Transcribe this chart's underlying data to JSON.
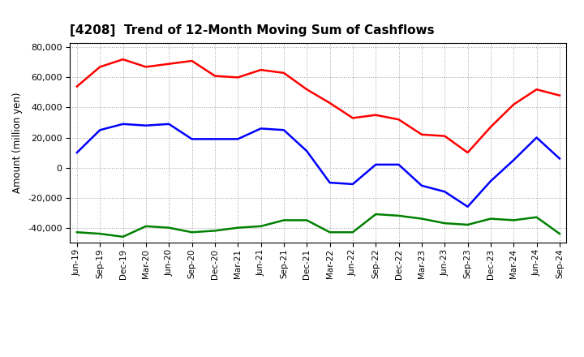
{
  "title": "[4208]  Trend of 12-Month Moving Sum of Cashflows",
  "ylabel": "Amount (million yen)",
  "x_labels": [
    "Jun-19",
    "Sep-19",
    "Dec-19",
    "Mar-20",
    "Jun-20",
    "Sep-20",
    "Dec-20",
    "Mar-21",
    "Jun-21",
    "Sep-21",
    "Dec-21",
    "Mar-22",
    "Jun-22",
    "Sep-22",
    "Dec-22",
    "Mar-23",
    "Jun-23",
    "Sep-23",
    "Dec-23",
    "Mar-24",
    "Jun-24",
    "Sep-24"
  ],
  "operating": [
    54000,
    67000,
    72000,
    67000,
    69000,
    71000,
    61000,
    60000,
    65000,
    63000,
    52000,
    43000,
    33000,
    35000,
    32000,
    22000,
    21000,
    10000,
    27000,
    42000,
    52000,
    48000
  ],
  "investing": [
    -43000,
    -44000,
    -46000,
    -39000,
    -40000,
    -43000,
    -42000,
    -40000,
    -39000,
    -35000,
    -35000,
    -43000,
    -43000,
    -31000,
    -32000,
    -34000,
    -37000,
    -38000,
    -34000,
    -35000,
    -33000,
    -44000
  ],
  "free": [
    10000,
    25000,
    29000,
    28000,
    29000,
    19000,
    19000,
    19000,
    26000,
    25000,
    11000,
    -10000,
    -11000,
    2000,
    2000,
    -12000,
    -16000,
    -26000,
    -9000,
    5000,
    20000,
    6000
  ],
  "operating_color": "#ff0000",
  "investing_color": "#008000",
  "free_color": "#0000ff",
  "ylim": [
    -50000,
    83000
  ],
  "yticks": [
    -40000,
    -20000,
    0,
    20000,
    40000,
    60000,
    80000
  ],
  "background_color": "#ffffff",
  "plot_bg_color": "#ffffff",
  "grid_color": "#999999",
  "title_fontsize": 11
}
